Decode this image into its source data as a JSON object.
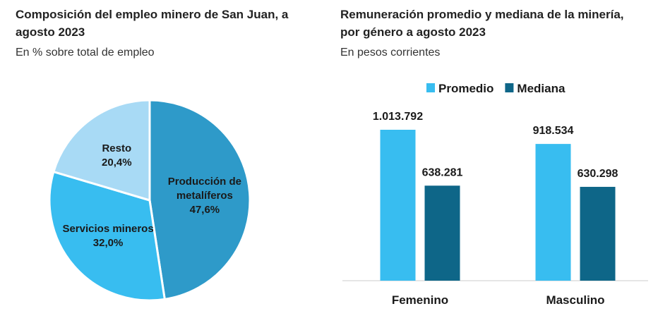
{
  "chart_data": [
    {
      "type": "pie",
      "title": "Composición del empleo minero de San Juan, a agosto 2023",
      "subtitle": "En % sobre total de empleo",
      "categories": [
        "Producción de metalíferos",
        "Servicios mineros",
        "Resto"
      ],
      "values": [
        47.6,
        32.0,
        20.4
      ],
      "value_labels": [
        "47,6%",
        "32,0%",
        "20,4%"
      ],
      "colors": [
        "#2e9ac9",
        "#38bdf0",
        "#a8daf5"
      ]
    },
    {
      "type": "bar",
      "title": "Remuneración promedio y mediana de la minería, por género a agosto 2023",
      "subtitle": "En pesos corrientes",
      "categories": [
        "Femenino",
        "Masculino"
      ],
      "series": [
        {
          "name": "Promedio",
          "color": "#38bdf0",
          "values": [
            1013792,
            918534
          ],
          "value_labels": [
            "1.013.792",
            "918.534"
          ]
        },
        {
          "name": "Mediana",
          "color": "#0e6688",
          "values": [
            638281,
            630298
          ],
          "value_labels": [
            "638.281",
            "630.298"
          ]
        }
      ]
    }
  ]
}
